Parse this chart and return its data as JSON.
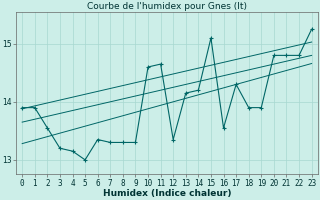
{
  "title": "Courbe de l'humidex pour Gnes (It)",
  "xlabel": "Humidex (Indice chaleur)",
  "bg_color": "#cceee8",
  "grid_color": "#a8d8d0",
  "line_color": "#006666",
  "x_data": [
    0,
    1,
    2,
    3,
    4,
    5,
    6,
    7,
    8,
    9,
    10,
    11,
    12,
    13,
    14,
    15,
    16,
    17,
    18,
    19,
    20,
    21,
    22,
    23
  ],
  "y_data": [
    13.9,
    13.9,
    13.55,
    13.2,
    13.15,
    13.0,
    13.35,
    13.3,
    13.3,
    13.3,
    14.6,
    14.65,
    13.35,
    14.15,
    14.2,
    15.1,
    13.55,
    14.3,
    13.9,
    13.9,
    14.8,
    14.8,
    14.8,
    15.25
  ],
  "reg_upper": [
    13.88,
    13.93,
    13.98,
    14.03,
    14.08,
    14.13,
    14.18,
    14.23,
    14.28,
    14.33,
    14.38,
    14.43,
    14.48,
    14.53,
    14.58,
    14.63,
    14.68,
    14.73,
    14.78,
    14.83,
    14.88,
    14.93,
    14.98,
    15.03
  ],
  "reg_mid": [
    13.65,
    13.7,
    13.75,
    13.8,
    13.85,
    13.9,
    13.95,
    14.0,
    14.05,
    14.1,
    14.15,
    14.2,
    14.25,
    14.3,
    14.35,
    14.4,
    14.45,
    14.5,
    14.55,
    14.6,
    14.65,
    14.7,
    14.75,
    14.8
  ],
  "reg_lower": [
    13.28,
    13.34,
    13.4,
    13.46,
    13.52,
    13.58,
    13.64,
    13.7,
    13.76,
    13.82,
    13.88,
    13.94,
    14.0,
    14.06,
    14.12,
    14.18,
    14.24,
    14.3,
    14.36,
    14.42,
    14.48,
    14.54,
    14.6,
    14.66
  ],
  "ylim": [
    12.75,
    15.55
  ],
  "yticks": [
    13,
    14,
    15
  ],
  "xticks": [
    0,
    1,
    2,
    3,
    4,
    5,
    6,
    7,
    8,
    9,
    10,
    11,
    12,
    13,
    14,
    15,
    16,
    17,
    18,
    19,
    20,
    21,
    22,
    23
  ],
  "figsize": [
    3.2,
    2.0
  ],
  "dpi": 100,
  "title_fontsize": 6.5,
  "label_fontsize": 6.5,
  "tick_fontsize": 5.5
}
